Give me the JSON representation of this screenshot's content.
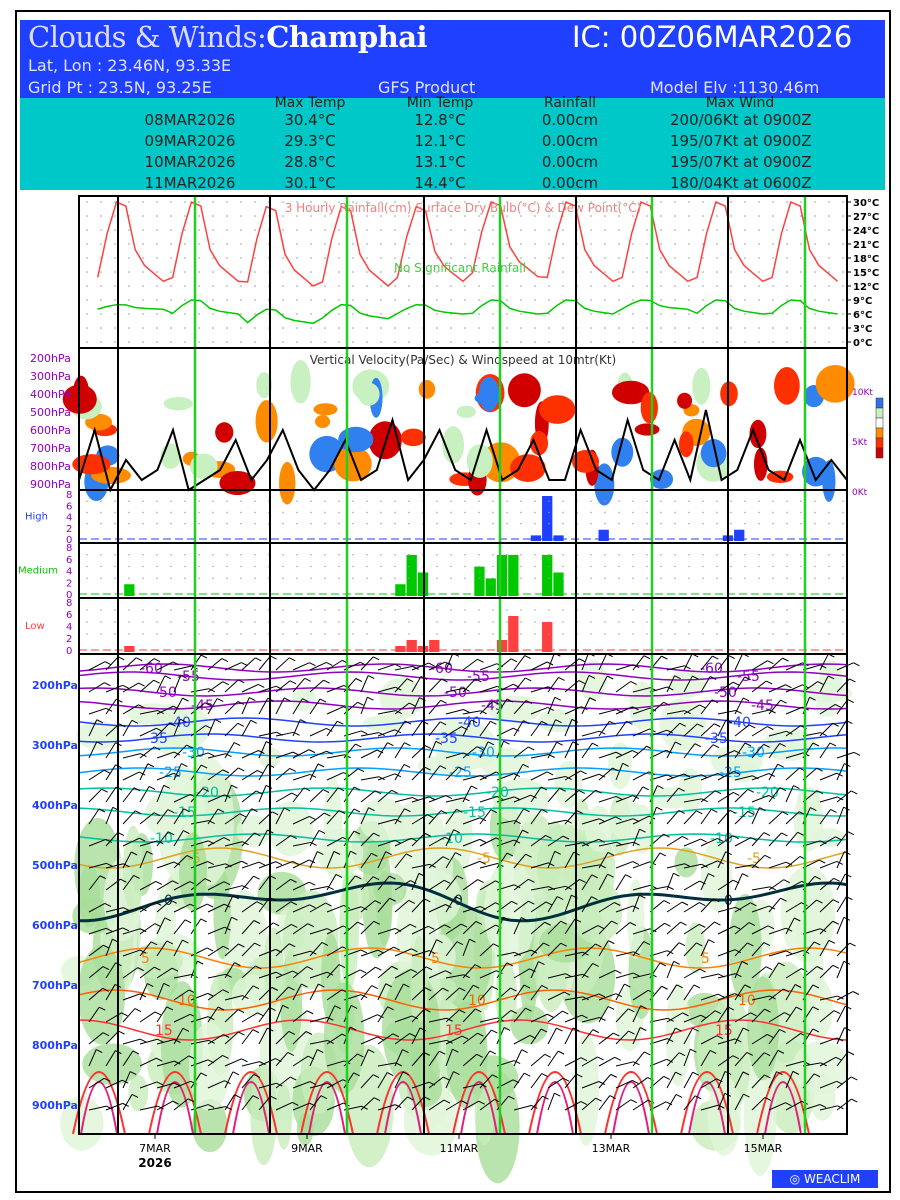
{
  "header": {
    "title_prefix": "Clouds & Winds:",
    "location": "Champhai",
    "ic": "IC: 00Z06MAR2026",
    "latlon": "Lat, Lon : 23.46N, 93.33E",
    "gridpt": "Grid Pt  : 23.5N, 93.25E",
    "product": "GFS Product",
    "elev": "Model Elv :1130.46m"
  },
  "table": {
    "headers": [
      "Max Temp",
      "Min Temp",
      "Rainfall",
      "Max Wind"
    ],
    "rows": [
      [
        "08MAR2026",
        "30.4°C",
        "12.8°C",
        "0.00cm",
        "200/06Kt at 0900Z"
      ],
      [
        "09MAR2026",
        "29.3°C",
        "12.1°C",
        "0.00cm",
        "195/07Kt at 0900Z"
      ],
      [
        "10MAR2026",
        "28.8°C",
        "13.1°C",
        "0.00cm",
        "195/07Kt at 0900Z"
      ],
      [
        "11MAR2026",
        "30.1°C",
        "14.4°C",
        "0.00cm",
        "180/04Kt at 0600Z"
      ]
    ]
  },
  "chart_data": [
    {
      "type": "line",
      "title": "3 Hourly Rainfall(cm)  Surface Dry Bulb(°C)  & Dew Point(°C)",
      "annotation": "No Significant Rainfall",
      "ylim": [
        0,
        30
      ],
      "yticks": [
        "30°C",
        "27°C",
        "24°C",
        "21°C",
        "18°C",
        "15°C",
        "12°C",
        "9°C",
        "6°C",
        "3°C",
        "0°C"
      ],
      "series": [
        {
          "name": "Dry Bulb",
          "color": "#ff4040",
          "daily_max": [
            30,
            30,
            29,
            29,
            29,
            30,
            30,
            30,
            30,
            30
          ],
          "daily_min": [
            13,
            13,
            12,
            12,
            13,
            14,
            13,
            13,
            13,
            13
          ]
        },
        {
          "name": "Dew Point",
          "color": "#00c800",
          "daily_max": [
            8,
            9,
            7,
            8,
            8,
            9,
            9,
            9,
            9,
            9
          ],
          "daily_min": [
            7,
            6,
            4,
            5,
            6,
            6,
            6,
            7,
            6,
            6
          ]
        }
      ]
    },
    {
      "type": "heatmap",
      "title": "Vertical Velocity(Pa/Sec) & Windspeed at 10mtr(Kt)",
      "levels": [
        "200hPa",
        "300hPa",
        "400hPa",
        "500hPa",
        "600hPa",
        "700hPa",
        "800hPa",
        "900hPa"
      ],
      "right_ticks": [
        "10Kt",
        "5Kt",
        "0Kt"
      ],
      "windspeed_kt": [
        1,
        6,
        0,
        3,
        1,
        2,
        6,
        0,
        1,
        2,
        5,
        1,
        3,
        6,
        2,
        0,
        2,
        5,
        1,
        2,
        7,
        1,
        3,
        6,
        2,
        1,
        6,
        1,
        2,
        5,
        1,
        1,
        6,
        2,
        1,
        7,
        2,
        1,
        5,
        1,
        8,
        1,
        2,
        6,
        2,
        1,
        5,
        1,
        3,
        1
      ]
    },
    {
      "type": "bar",
      "name": "High",
      "ylim": [
        0,
        8
      ],
      "yticks": [
        "8",
        "6",
        "4",
        "2",
        "0"
      ],
      "color": "#2040ff",
      "values": [
        0,
        0,
        0,
        0,
        0,
        0,
        0,
        0,
        0,
        0,
        0,
        0,
        0,
        0,
        0,
        0,
        0,
        0,
        0,
        0,
        0,
        0,
        0,
        0,
        0,
        0,
        0,
        0,
        0,
        0,
        0,
        0,
        0,
        0,
        0,
        0,
        0,
        0,
        0,
        0,
        1,
        8,
        1,
        0,
        0,
        0,
        2,
        0,
        0,
        0,
        0,
        0,
        0,
        0,
        0,
        0,
        0,
        1,
        2,
        0,
        0,
        0,
        0,
        0,
        0,
        0,
        0,
        0
      ]
    },
    {
      "type": "bar",
      "name": "Medium",
      "ylim": [
        0,
        8
      ],
      "yticks": [
        "8",
        "6",
        "4",
        "2",
        "0"
      ],
      "color": "#00c800",
      "values": [
        0,
        0,
        0,
        0,
        2,
        0,
        0,
        0,
        0,
        0,
        0,
        0,
        0,
        0,
        0,
        0,
        0,
        0,
        0,
        0,
        0,
        0,
        0,
        0,
        0,
        0,
        0,
        0,
        2,
        7,
        4,
        0,
        0,
        0,
        0,
        5,
        3,
        7,
        7,
        0,
        0,
        7,
        4,
        0,
        0,
        0,
        0,
        0,
        0,
        0,
        0,
        0,
        0,
        0,
        0,
        0,
        0,
        0,
        0,
        0,
        0,
        0,
        0,
        0,
        0,
        0,
        0,
        0
      ]
    },
    {
      "type": "bar",
      "name": "Low",
      "ylim": [
        0,
        8
      ],
      "yticks": [
        "8",
        "6",
        "4",
        "2",
        "0"
      ],
      "color": "#ff4040",
      "values": [
        0,
        0,
        0,
        0,
        1,
        0,
        0,
        0,
        0,
        0,
        0,
        0,
        0,
        0,
        0,
        0,
        0,
        0,
        0,
        0,
        0,
        0,
        0,
        0,
        0,
        0,
        0,
        0,
        1,
        2,
        1,
        2,
        0,
        0,
        0,
        0,
        0,
        2,
        6,
        0,
        0,
        5,
        0,
        0,
        0,
        0,
        0,
        0,
        0,
        0,
        0,
        0,
        0,
        0,
        0,
        0,
        0,
        0,
        0,
        0,
        0,
        0,
        0,
        0,
        0,
        0,
        0,
        0
      ]
    },
    {
      "type": "line",
      "name": "Isotherms & Relative Humidity",
      "levels": [
        "200hPa",
        "300hPa",
        "400hPa",
        "500hPa",
        "600hPa",
        "700hPa",
        "800hPa",
        "900hPa"
      ],
      "isotherms": [
        {
          "label": "-60",
          "color": "#9000c0"
        },
        {
          "label": "-55",
          "color": "#9000c0"
        },
        {
          "label": "-50",
          "color": "#9000c0"
        },
        {
          "label": "-45",
          "color": "#9000c0"
        },
        {
          "label": "-40",
          "color": "#2040ff"
        },
        {
          "label": "-35",
          "color": "#2040ff"
        },
        {
          "label": "-30",
          "color": "#00a0ff"
        },
        {
          "label": "-25",
          "color": "#00a0ff"
        },
        {
          "label": "-20",
          "color": "#00c0a0"
        },
        {
          "label": "-15",
          "color": "#00c0a0"
        },
        {
          "label": "-10",
          "color": "#00c0a0"
        },
        {
          "label": "-5",
          "color": "#e0a020"
        },
        {
          "label": "0",
          "color": "#003040"
        },
        {
          "label": "5",
          "color": "#ff8000"
        },
        {
          "label": "10",
          "color": "#ff6000"
        },
        {
          "label": "15",
          "color": "#ff3030"
        }
      ]
    }
  ],
  "xaxis": {
    "labels": [
      "7MAR",
      "9MAR",
      "11MAR",
      "13MAR",
      "15MAR"
    ],
    "year": "2026"
  },
  "cloud_labels": [
    "High",
    "Medium",
    "Low"
  ],
  "logo": "WEACLIM"
}
